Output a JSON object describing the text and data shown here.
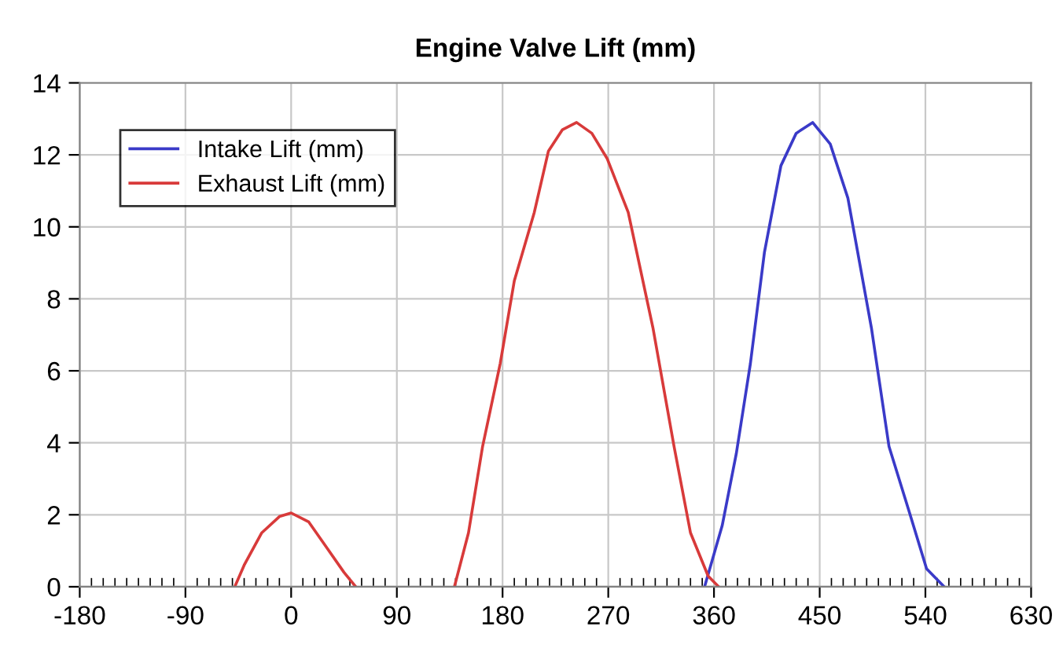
{
  "chart_data": {
    "type": "line",
    "title": "Engine Valve Lift (mm)",
    "series": [
      {
        "name": "Intake Lift (mm)",
        "color": "#3a3ac8",
        "x": [
          352,
          367,
          379,
          391,
          403,
          417,
          430,
          444,
          459,
          474,
          494,
          509,
          527,
          541,
          556
        ],
        "values": [
          0,
          1.7,
          3.7,
          6.2,
          9.3,
          11.7,
          12.6,
          12.9,
          12.3,
          10.8,
          7.2,
          3.9,
          2.0,
          0.5,
          0
        ]
      },
      {
        "name": "Exhaust Lift (mm)",
        "color": "#d83a3a",
        "x": [
          -48,
          -40,
          -25,
          -10,
          0,
          15,
          30,
          45,
          55,
          97,
          139,
          151,
          163,
          178,
          190,
          207,
          219,
          231,
          243,
          256,
          269,
          287,
          308,
          326,
          340,
          355,
          364
        ],
        "values": [
          0,
          0.6,
          1.5,
          1.95,
          2.05,
          1.8,
          1.1,
          0.4,
          0,
          null,
          0,
          1.5,
          3.9,
          6.2,
          8.5,
          10.4,
          12.1,
          12.7,
          12.9,
          12.6,
          11.9,
          10.4,
          7.2,
          3.9,
          1.5,
          0.3,
          0
        ]
      }
    ],
    "xlim": [
      -180,
      630
    ],
    "xticks": [
      -180,
      -90,
      0,
      90,
      180,
      270,
      360,
      450,
      540,
      630
    ],
    "ylim": [
      0,
      14
    ],
    "yticks": [
      0,
      2,
      4,
      6,
      8,
      10,
      12,
      14
    ],
    "grid": true,
    "legend": "top left",
    "marker": "none",
    "line_style": "solid"
  }
}
